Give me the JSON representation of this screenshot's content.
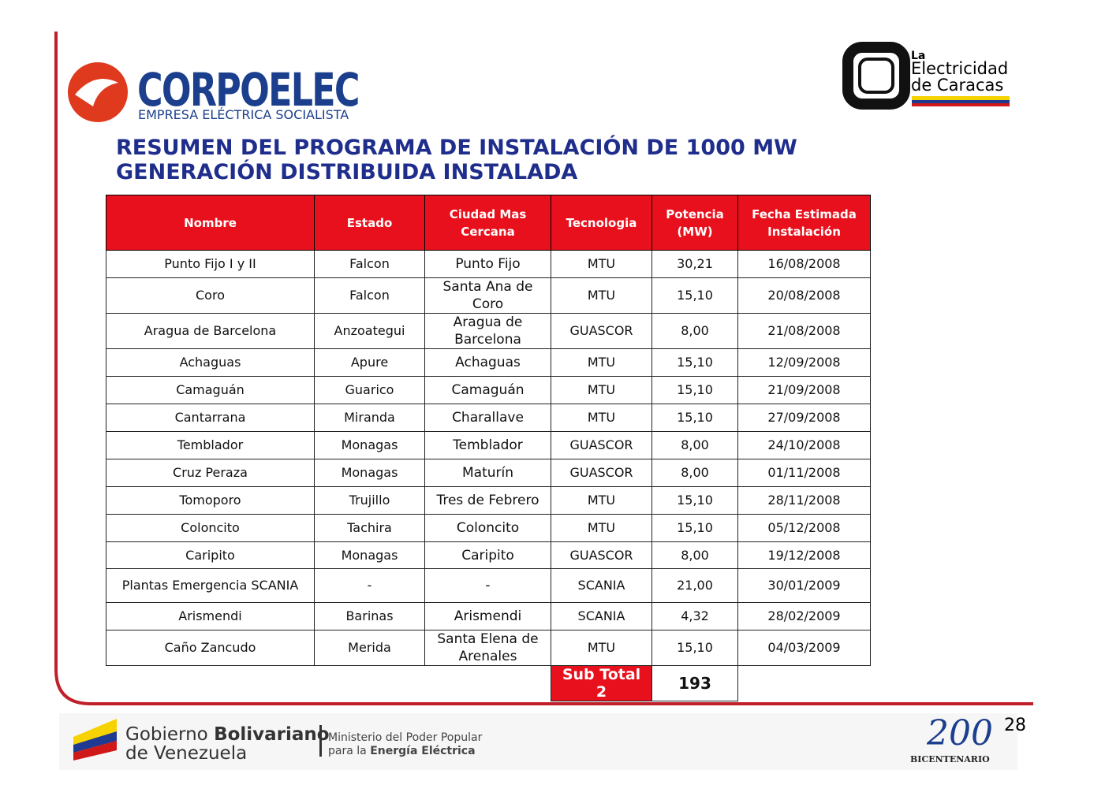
{
  "header": {
    "logo_left": {
      "name": "CORPOELEC",
      "tagline": "EMPRESA ELÉCTRICA SOCIALISTA"
    },
    "logo_right": {
      "line1": "La",
      "line2": "Electricidad",
      "line3": "de Caracas"
    }
  },
  "title": {
    "line1": "RESUMEN DEL PROGRAMA DE INSTALACIÓN DE 1000 MW",
    "line2": "GENERACIÓN DISTRIBUIDA INSTALADA"
  },
  "table": {
    "columns": [
      "Nombre",
      "Estado",
      "Ciudad Mas Cercana",
      "Tecnologia",
      "Potencia (MW)",
      "Fecha Estimada Instalación"
    ],
    "rows": [
      [
        "Punto Fijo I y II",
        "Falcon",
        "Punto Fijo",
        "MTU",
        "30,21",
        "16/08/2008"
      ],
      [
        "Coro",
        "Falcon",
        "Santa Ana de Coro",
        "MTU",
        "15,10",
        "20/08/2008"
      ],
      [
        "Aragua de Barcelona",
        "Anzoategui",
        "Aragua de Barcelona",
        "GUASCOR",
        "8,00",
        "21/08/2008"
      ],
      [
        "Achaguas",
        "Apure",
        "Achaguas",
        "MTU",
        "15,10",
        "12/09/2008"
      ],
      [
        "Camaguán",
        "Guarico",
        "Camaguán",
        "MTU",
        "15,10",
        "21/09/2008"
      ],
      [
        "Cantarrana",
        "Miranda",
        "Charallave",
        "MTU",
        "15,10",
        "27/09/2008"
      ],
      [
        "Temblador",
        "Monagas",
        "Temblador",
        "GUASCOR",
        "8,00",
        "24/10/2008"
      ],
      [
        "Cruz Peraza",
        "Monagas",
        "Maturín",
        "GUASCOR",
        "8,00",
        "01/11/2008"
      ],
      [
        "Tomoporo",
        "Trujillo",
        "Tres de Febrero",
        "MTU",
        "15,10",
        "28/11/2008"
      ],
      [
        "Coloncito",
        "Tachira",
        "Coloncito",
        "MTU",
        "15,10",
        "05/12/2008"
      ],
      [
        "Caripito",
        "Monagas",
        "Caripito",
        "GUASCOR",
        "8,00",
        "19/12/2008"
      ],
      [
        "Plantas Emergencia SCANIA",
        "-",
        "-",
        "SCANIA",
        "21,00",
        "30/01/2009"
      ],
      [
        "Arismendi",
        "Barinas",
        "Arismendi",
        "SCANIA",
        "4,32",
        "28/02/2009"
      ],
      [
        "Caño Zancudo",
        "Merida",
        "Santa Elena de Arenales",
        "MTU",
        "15,10",
        "04/03/2009"
      ]
    ],
    "subtotal": {
      "label": "Sub Total 2",
      "value": "193"
    }
  },
  "footer": {
    "gov1": "Gobierno",
    "gov2": "Bolivariano",
    "gov3": "de Venezuela",
    "min1": "Ministerio del Poder Popular",
    "min2a": "para la",
    "min2b": "Energía Eléctrica",
    "bicent_num": "200",
    "bicent": "BICENTENARIO",
    "page": "28"
  }
}
